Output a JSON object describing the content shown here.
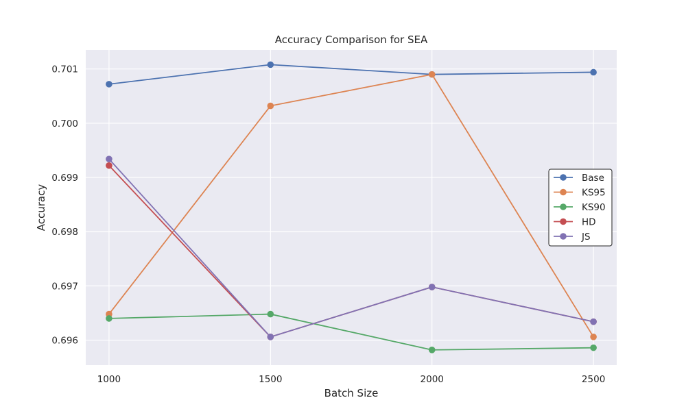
{
  "chart_data": {
    "type": "line",
    "title": "Accuracy Comparison for SEA",
    "xlabel": "Batch Size",
    "ylabel": "Accuracy",
    "x": [
      1000,
      1500,
      2000,
      2500
    ],
    "x_ticks": [
      "1000",
      "1500",
      "2000",
      "2500"
    ],
    "y_ticks": [
      0.696,
      0.697,
      0.698,
      0.699,
      0.7,
      0.701
    ],
    "y_tick_labels": [
      "0.696",
      "0.697",
      "0.698",
      "0.699",
      "0.700",
      "0.701"
    ],
    "xlim": [
      928,
      2572
    ],
    "ylim": [
      0.69554,
      0.70135
    ],
    "grid": true,
    "legend_position": "center-right",
    "series": [
      {
        "name": "Base",
        "color": "#4c72b0",
        "values": [
          0.70072,
          0.70108,
          0.7009,
          0.70094
        ]
      },
      {
        "name": "KS95",
        "color": "#dd8452",
        "values": [
          0.69648,
          0.70032,
          0.7009,
          0.69606
        ]
      },
      {
        "name": "KS90",
        "color": "#55a868",
        "values": [
          0.6964,
          0.69648,
          0.69582,
          0.69586
        ]
      },
      {
        "name": "HD",
        "color": "#c44e52",
        "values": [
          0.69922,
          0.69606,
          0.69698,
          0.69634
        ]
      },
      {
        "name": "JS",
        "color": "#8172b3",
        "values": [
          0.69934,
          0.69606,
          0.69698,
          0.69634
        ]
      }
    ]
  }
}
